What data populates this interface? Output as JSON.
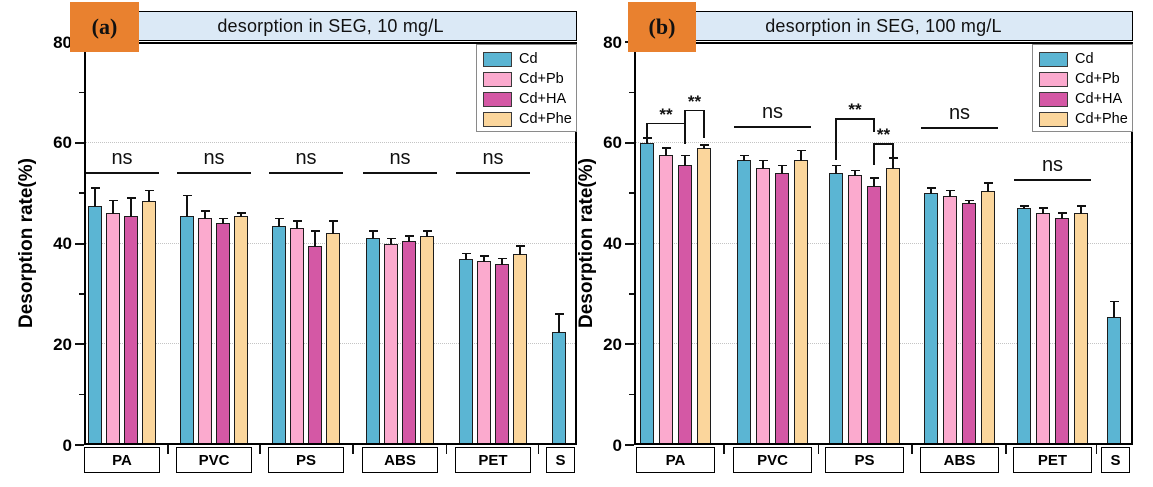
{
  "figure": {
    "description": "Two-panel grouped bar figure of Cd desorption rates from microplastics",
    "panel_labels": [
      "(a)",
      "(b)"
    ]
  },
  "colors": {
    "cd": "#5bb5d3",
    "cd_pb": "#fbaace",
    "cd_ha": "#d458a5",
    "cd_phe": "#fbd69c",
    "title_bar_bg": "#dbe9f6",
    "panel_label_box": "#e9812f",
    "axis": "#000000",
    "gridline": "#c4c4c4"
  },
  "chart_data": [
    {
      "type": "bar",
      "panel_label": "(a)",
      "title": "desorption in SEG, 10 mg/L",
      "ylabel": "Desorption rate(%)",
      "ylim": [
        0,
        80
      ],
      "yticks": [
        0,
        20,
        40,
        60,
        80
      ],
      "yticks_minor": [
        10,
        30,
        50,
        70
      ],
      "grid_y": [
        20,
        40,
        60
      ],
      "grid": "dotted horizontal",
      "legend_position": "top-right",
      "categories": [
        "PA",
        "PVC",
        "PS",
        "ABS",
        "PET",
        "S"
      ],
      "series": [
        {
          "name": "Cd",
          "color": "#5bb5d3",
          "values": [
            47.5,
            45.5,
            43.5,
            41,
            37,
            22.5
          ],
          "errors": [
            3.5,
            4,
            1.5,
            1.5,
            1,
            3.5
          ]
        },
        {
          "name": "Cd+Pb",
          "color": "#fbaace",
          "values": [
            46,
            45,
            43,
            40,
            36.5,
            null
          ],
          "errors": [
            2.5,
            1.5,
            1.5,
            1,
            1,
            null
          ]
        },
        {
          "name": "Cd+HA",
          "color": "#d458a5",
          "values": [
            45.5,
            44,
            39.5,
            40.5,
            36,
            null
          ],
          "errors": [
            3.5,
            1,
            3,
            1,
            1,
            null
          ]
        },
        {
          "name": "Cd+Phe",
          "color": "#fbd69c",
          "values": [
            48.5,
            45.5,
            42,
            41.5,
            38,
            null
          ],
          "errors": [
            2,
            0.5,
            2.5,
            1,
            1.5,
            null
          ]
        }
      ],
      "annotations": [
        {
          "group": "PA",
          "type": "ns",
          "label": "ns",
          "y": 54
        },
        {
          "group": "PVC",
          "type": "ns",
          "label": "ns",
          "y": 54
        },
        {
          "group": "PS",
          "type": "ns",
          "label": "ns",
          "y": 54
        },
        {
          "group": "ABS",
          "type": "ns",
          "label": "ns",
          "y": 54
        },
        {
          "group": "PET",
          "type": "ns",
          "label": "ns",
          "y": 54
        }
      ]
    },
    {
      "type": "bar",
      "panel_label": "(b)",
      "title": "desorption in SEG, 100 mg/L",
      "ylabel": "Desorption rate(%)",
      "ylim": [
        0,
        80
      ],
      "yticks": [
        0,
        20,
        40,
        60,
        80
      ],
      "yticks_minor": [
        10,
        30,
        50,
        70
      ],
      "grid_y": [
        20,
        40,
        60
      ],
      "grid": "dotted horizontal",
      "legend_position": "top-right",
      "categories": [
        "PA",
        "PVC",
        "PS",
        "ABS",
        "PET",
        "S"
      ],
      "series": [
        {
          "name": "Cd",
          "color": "#5bb5d3",
          "values": [
            60,
            56.5,
            54,
            50,
            47,
            25.5
          ],
          "errors": [
            1,
            1,
            1.5,
            1,
            0.5,
            3
          ]
        },
        {
          "name": "Cd+Pb",
          "color": "#fbaace",
          "values": [
            57.5,
            55,
            53.5,
            49.5,
            46,
            null
          ],
          "errors": [
            1.5,
            1.5,
            1,
            1,
            1,
            null
          ]
        },
        {
          "name": "Cd+HA",
          "color": "#d458a5",
          "values": [
            55.5,
            54,
            51.5,
            48,
            45,
            null
          ],
          "errors": [
            2,
            1.5,
            1.5,
            0.5,
            1,
            null
          ]
        },
        {
          "name": "Cd+Phe",
          "color": "#fbd69c",
          "values": [
            59,
            56.5,
            55,
            50.5,
            46,
            null
          ],
          "errors": [
            0.5,
            2,
            2,
            1.5,
            1.5,
            null
          ]
        }
      ],
      "annotations": [
        {
          "group": "PA",
          "type": "bracket",
          "label": "**",
          "from_bar": 0,
          "to_bar": 2,
          "top": 63.8,
          "left_drop": 60.6,
          "right_drop": 59.8
        },
        {
          "group": "PA",
          "type": "bracket",
          "label": "**",
          "from_bar": 2,
          "to_bar": 3,
          "top": 66.4,
          "left_drop": 60.4,
          "right_drop": 61.0
        },
        {
          "group": "PVC",
          "type": "ns",
          "label": "ns",
          "y": 63.2
        },
        {
          "group": "PS",
          "type": "bracket",
          "label": "**",
          "from_bar": 0,
          "to_bar": 2,
          "top": 64.7,
          "left_drop": 56.6,
          "right_drop": 62.2
        },
        {
          "group": "PS",
          "type": "bracket",
          "label": "**",
          "from_bar": 2,
          "to_bar": 3,
          "top": 59.7,
          "left_drop": 55.5,
          "right_drop": 56.7
        },
        {
          "group": "ABS",
          "type": "ns",
          "label": "ns",
          "y": 62.9
        },
        {
          "group": "PET",
          "type": "ns",
          "label": "ns",
          "y": 52.6
        }
      ]
    }
  ]
}
